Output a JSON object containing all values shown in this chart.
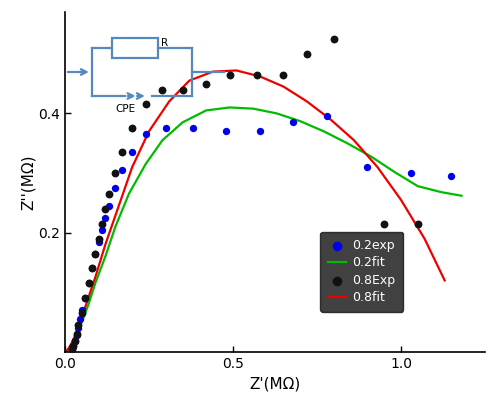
{
  "xlabel": "Z'(MΩ)",
  "ylabel": "Z''(MΩ)",
  "xlim": [
    0.0,
    1.25
  ],
  "ylim": [
    0.0,
    0.57
  ],
  "xticks": [
    0.0,
    0.5,
    1.0
  ],
  "yticks": [
    0.2,
    0.4
  ],
  "bg_color": "#ffffff",
  "exp02_x": [
    0.02,
    0.025,
    0.03,
    0.035,
    0.04,
    0.045,
    0.05,
    0.06,
    0.07,
    0.08,
    0.09,
    0.1,
    0.11,
    0.12,
    0.13,
    0.15,
    0.17,
    0.2,
    0.24,
    0.3,
    0.38,
    0.48,
    0.58,
    0.68,
    0.78,
    0.9,
    1.03,
    1.15
  ],
  "exp02_y": [
    0.005,
    0.01,
    0.018,
    0.028,
    0.04,
    0.055,
    0.07,
    0.09,
    0.115,
    0.14,
    0.165,
    0.185,
    0.205,
    0.225,
    0.245,
    0.275,
    0.305,
    0.335,
    0.365,
    0.375,
    0.375,
    0.37,
    0.37,
    0.385,
    0.395,
    0.31,
    0.3,
    0.295
  ],
  "fit02_x": [
    0.005,
    0.01,
    0.02,
    0.03,
    0.05,
    0.07,
    0.09,
    0.12,
    0.15,
    0.19,
    0.24,
    0.29,
    0.35,
    0.42,
    0.49,
    0.56,
    0.63,
    0.7,
    0.77,
    0.84,
    0.91,
    0.98,
    1.05,
    1.12,
    1.18
  ],
  "fit02_y": [
    0.002,
    0.005,
    0.013,
    0.025,
    0.05,
    0.08,
    0.115,
    0.16,
    0.21,
    0.265,
    0.315,
    0.355,
    0.385,
    0.405,
    0.41,
    0.408,
    0.4,
    0.387,
    0.37,
    0.35,
    0.328,
    0.302,
    0.278,
    0.268,
    0.262
  ],
  "exp08_x": [
    0.02,
    0.025,
    0.03,
    0.035,
    0.04,
    0.05,
    0.06,
    0.07,
    0.08,
    0.09,
    0.1,
    0.11,
    0.12,
    0.13,
    0.15,
    0.17,
    0.2,
    0.24,
    0.29,
    0.35,
    0.42,
    0.49,
    0.57,
    0.65,
    0.72,
    0.8,
    0.95,
    1.05
  ],
  "exp08_y": [
    0.005,
    0.01,
    0.018,
    0.03,
    0.045,
    0.065,
    0.09,
    0.115,
    0.14,
    0.165,
    0.19,
    0.215,
    0.24,
    0.265,
    0.3,
    0.335,
    0.375,
    0.415,
    0.44,
    0.44,
    0.45,
    0.465,
    0.465,
    0.465,
    0.5,
    0.525,
    0.215,
    0.215
  ],
  "fit08_x": [
    0.005,
    0.01,
    0.02,
    0.04,
    0.06,
    0.09,
    0.12,
    0.16,
    0.2,
    0.25,
    0.31,
    0.37,
    0.44,
    0.51,
    0.58,
    0.65,
    0.72,
    0.79,
    0.86,
    0.93,
    1.0,
    1.07,
    1.13
  ],
  "fit08_y": [
    0.002,
    0.005,
    0.015,
    0.04,
    0.075,
    0.125,
    0.18,
    0.245,
    0.31,
    0.37,
    0.42,
    0.455,
    0.47,
    0.472,
    0.462,
    0.445,
    0.42,
    0.39,
    0.355,
    0.31,
    0.255,
    0.19,
    0.12
  ],
  "color_exp02": "#0000ee",
  "color_fit02": "#00bb00",
  "color_exp08": "#111111",
  "color_fit08": "#ee0000",
  "circuit_color": "#5588bb",
  "legend_bg": "#111111",
  "marker_size_exp02": 28,
  "marker_size_exp08": 32,
  "line_width": 1.6
}
